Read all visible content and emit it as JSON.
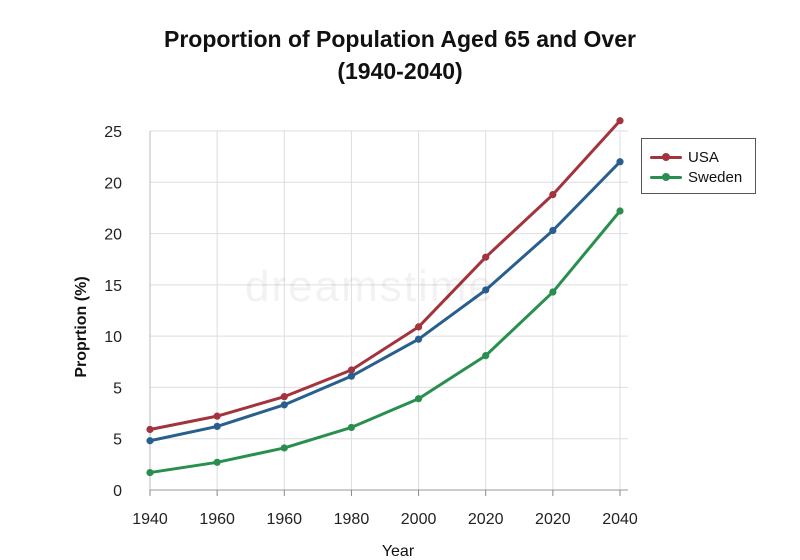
{
  "chart_data": {
    "type": "line",
    "title": "Proportion of Population Aged 65 and Over",
    "subtitle": "(1940-2040)",
    "xlabel": "Year",
    "ylabel": "Proprtion (%)",
    "x_ticks": [
      "1940",
      "1960",
      "1960",
      "1980",
      "2000",
      "2020",
      "2020",
      "2040"
    ],
    "y_ticks": [
      "0",
      "5",
      "5",
      "10",
      "15",
      "20",
      "20",
      "25"
    ],
    "ylim": [
      0,
      35
    ],
    "grid": true,
    "legend_position": "top-right",
    "series": [
      {
        "name": "USA",
        "color": "#a3333d",
        "values": [
          5.9,
          7.2,
          9.1,
          11.7,
          15.9,
          22.7,
          28.8,
          36.0
        ]
      },
      {
        "name": "Sweden",
        "color": "#2a8f4e",
        "values": [
          1.7,
          2.7,
          4.1,
          6.1,
          8.9,
          13.1,
          19.3,
          27.2
        ]
      },
      {
        "name": "",
        "color": "#285f8f",
        "values": [
          4.8,
          6.2,
          8.3,
          11.1,
          14.7,
          19.5,
          25.3,
          32.0
        ]
      }
    ]
  },
  "watermark": "dreamstime"
}
